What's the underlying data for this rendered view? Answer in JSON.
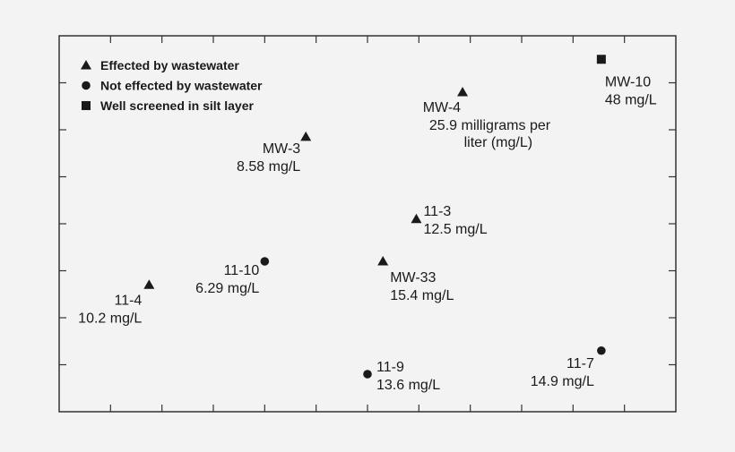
{
  "chart_data": {
    "type": "scatter",
    "title": "",
    "xlabel": "",
    "ylabel": "",
    "grid": false,
    "legend_position": "top-left",
    "legend": [
      {
        "key": "effected",
        "label": "Effected by wastewater",
        "marker": "triangle"
      },
      {
        "key": "not_effected",
        "label": "Not effected by wastewater",
        "marker": "circle"
      },
      {
        "key": "silt",
        "label": "Well screened in silt layer",
        "marker": "square"
      }
    ],
    "points": [
      {
        "id": "MW-10",
        "category": "silt",
        "label": "MW-10",
        "value_text": "48 mg/L",
        "x": 10.55,
        "y": 7.5
      },
      {
        "id": "MW-4",
        "category": "effected",
        "label": "MW-4",
        "value_text": "25.9 milligrams per liter (mg/L)",
        "x": 7.85,
        "y": 6.8
      },
      {
        "id": "MW-3",
        "category": "effected",
        "label": "MW-3",
        "value_text": "8.58 mg/L",
        "x": 4.8,
        "y": 5.85
      },
      {
        "id": "11-3",
        "category": "effected",
        "label": "11-3",
        "value_text": "12.5 mg/L",
        "x": 6.95,
        "y": 4.1
      },
      {
        "id": "11-10",
        "category": "not_effected",
        "label": "11-10",
        "value_text": "6.29 mg/L",
        "x": 4.0,
        "y": 3.2
      },
      {
        "id": "MW-33",
        "category": "effected",
        "label": "MW-33",
        "value_text": "15.4 mg/L",
        "x": 6.3,
        "y": 3.2
      },
      {
        "id": "11-4",
        "category": "effected",
        "label": "11-4",
        "value_text": "10.2 mg/L",
        "x": 1.75,
        "y": 2.7
      },
      {
        "id": "11-9",
        "category": "not_effected",
        "label": "11-9",
        "value_text": "13.6 mg/L",
        "x": 6.0,
        "y": 0.8
      },
      {
        "id": "11-7",
        "category": "not_effected",
        "label": "11-7",
        "value_text": "14.9 mg/L",
        "x": 10.55,
        "y": 1.3
      }
    ],
    "xlim": [
      0,
      12
    ],
    "ylim": [
      0,
      8
    ]
  },
  "colors": {
    "background": "#f3f3f3",
    "frame": "#333333",
    "marker": "#1a1a1a",
    "text": "#1a1a1a"
  }
}
